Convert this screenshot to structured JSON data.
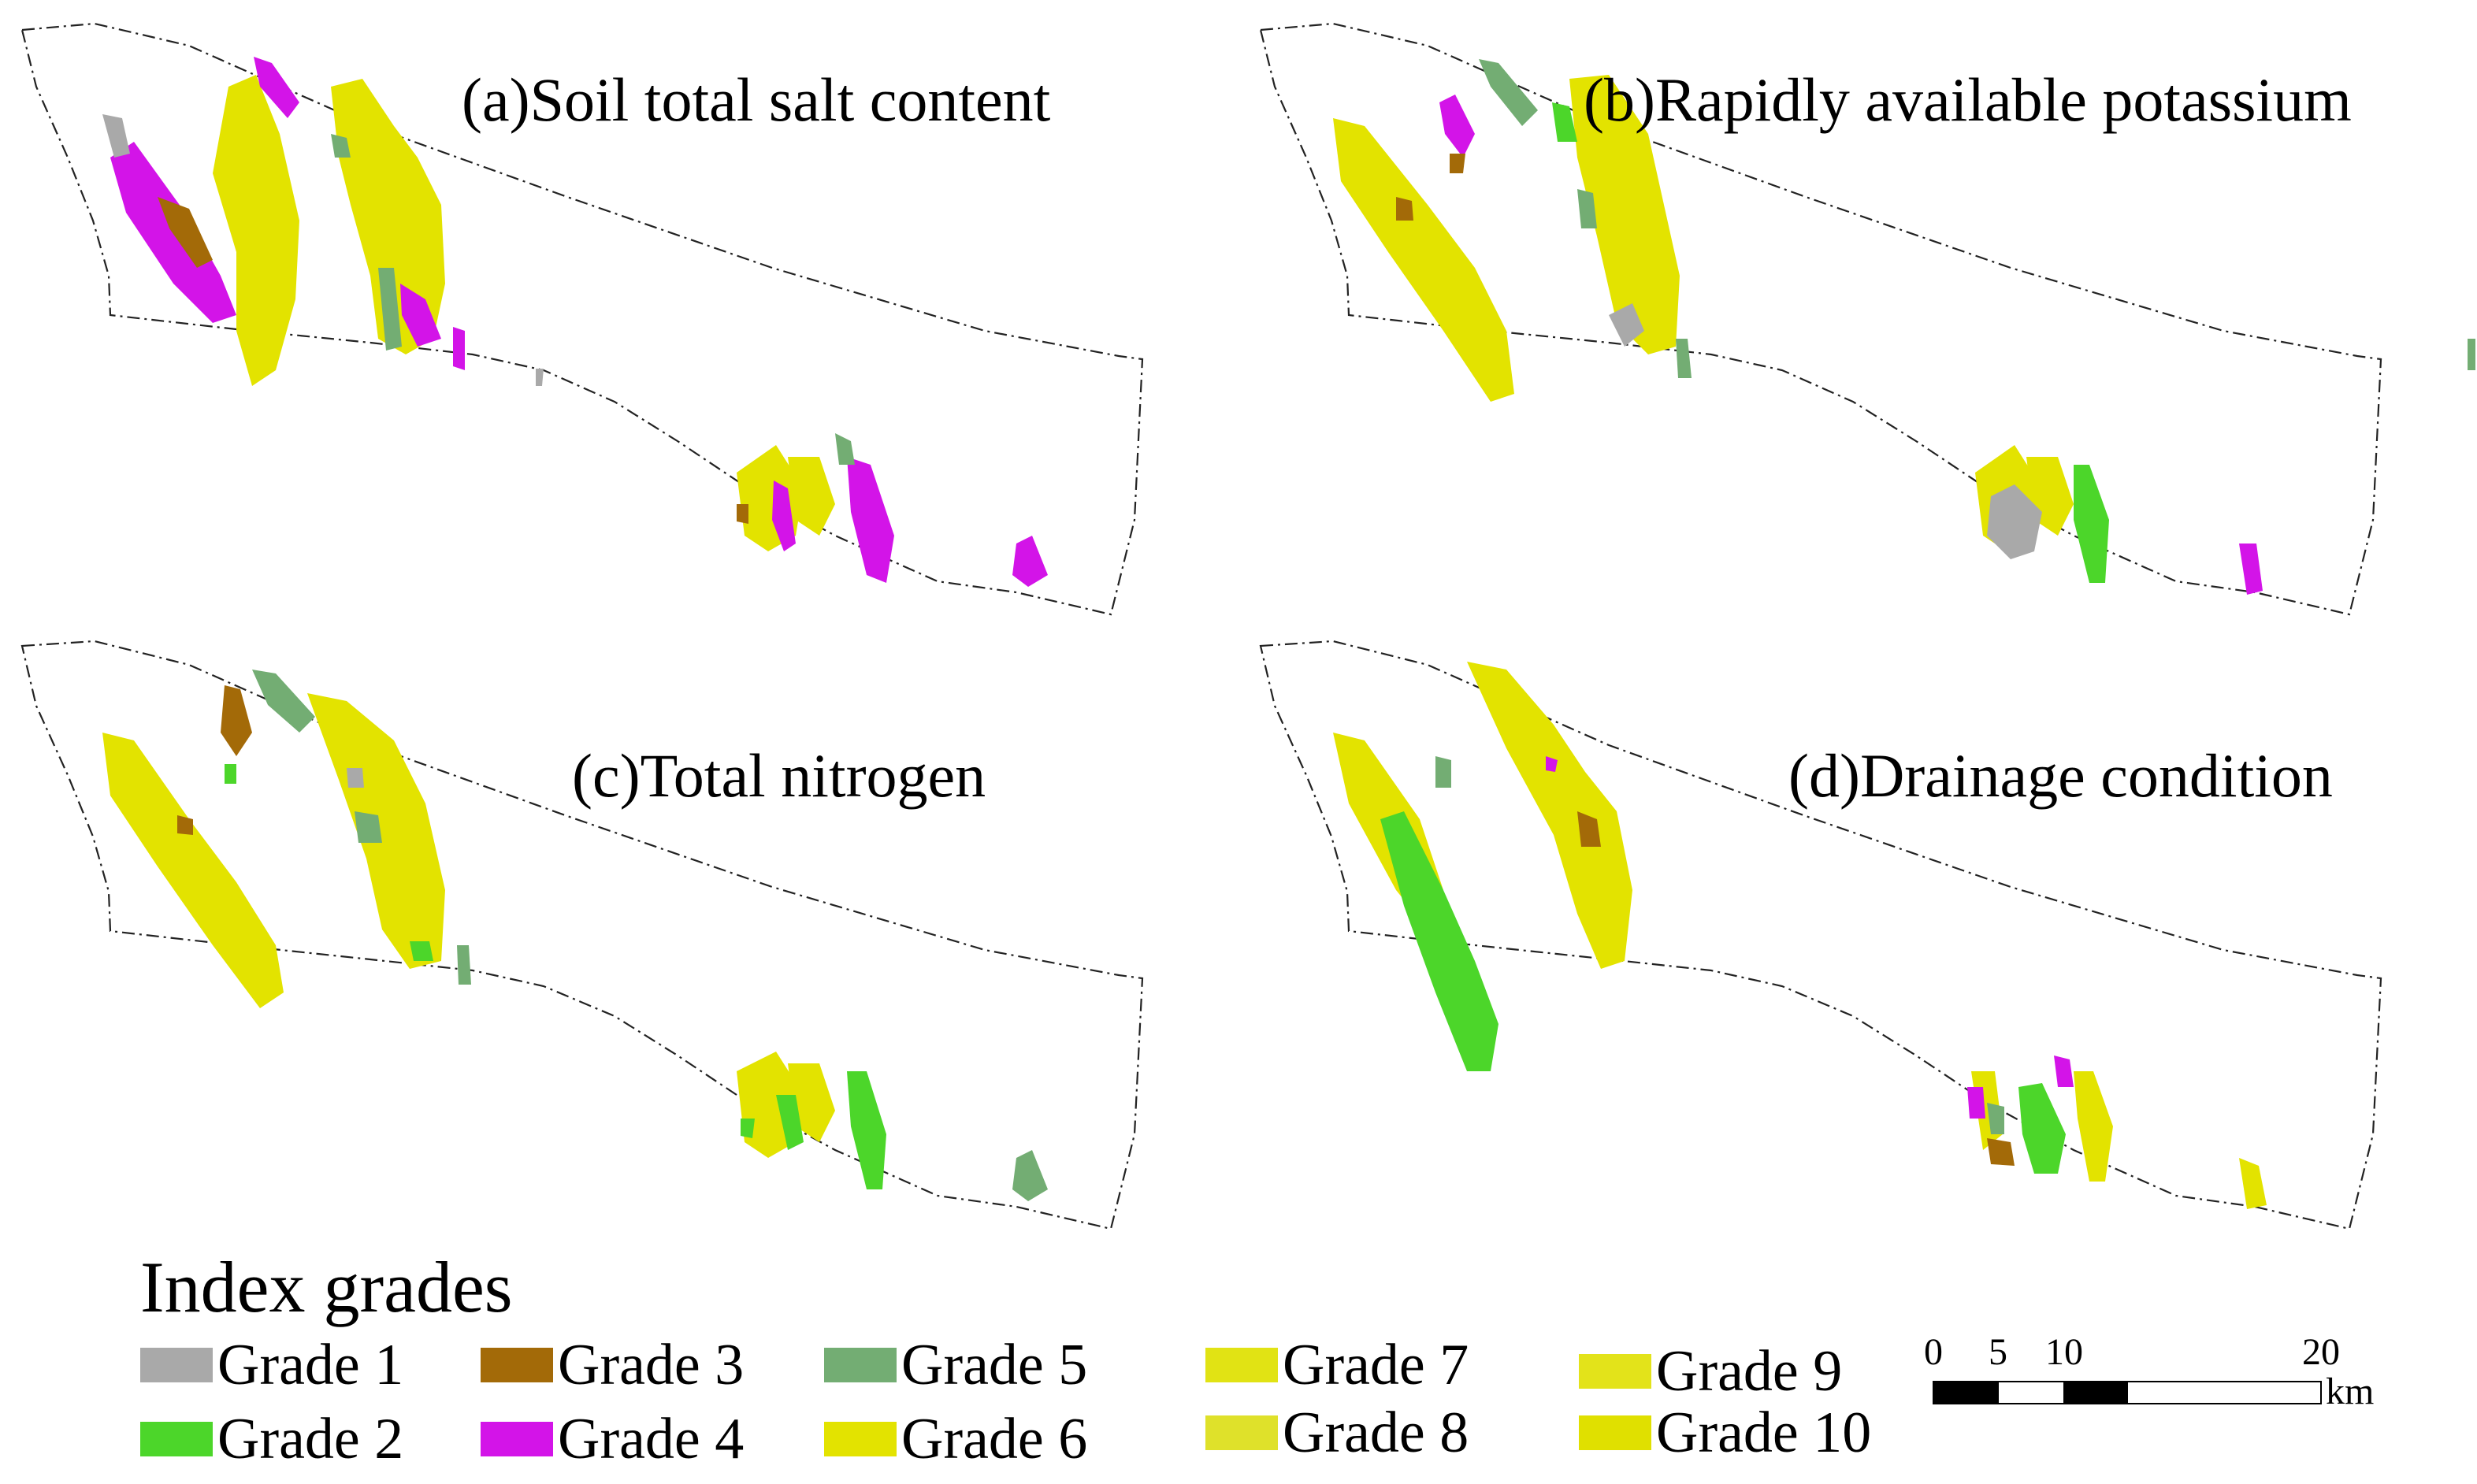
{
  "panels": [
    {
      "id": "a",
      "title": "(a)Soil total salt content"
    },
    {
      "id": "b",
      "title": "(b)Rapidly available potassium"
    },
    {
      "id": "c",
      "title": "(c)Total nitrogen"
    },
    {
      "id": "d",
      "title": "(d)Drainage condition"
    }
  ],
  "legend": {
    "title": "Index grades",
    "items": [
      {
        "label": "Grade 1",
        "color": "#a9a9a9"
      },
      {
        "label": "Grade 2",
        "color": "#4cd62a"
      },
      {
        "label": "Grade 3",
        "color": "#a36a08"
      },
      {
        "label": "Grade 4",
        "color": "#d314e8"
      },
      {
        "label": "Grade 5",
        "color": "#73ad73"
      },
      {
        "label": "Grade 6",
        "color": "#e3e300"
      },
      {
        "label": "Grade 7",
        "color": "#e1e314"
      },
      {
        "label": "Grade 8",
        "color": "#dfe12a"
      },
      {
        "label": "Grade 9",
        "color": "#e3e31a"
      },
      {
        "label": "Grade 10",
        "color": "#e0e000"
      }
    ]
  },
  "scale_bar": {
    "ticks": [
      "0",
      "5",
      "10",
      "20"
    ],
    "unit": "km"
  }
}
